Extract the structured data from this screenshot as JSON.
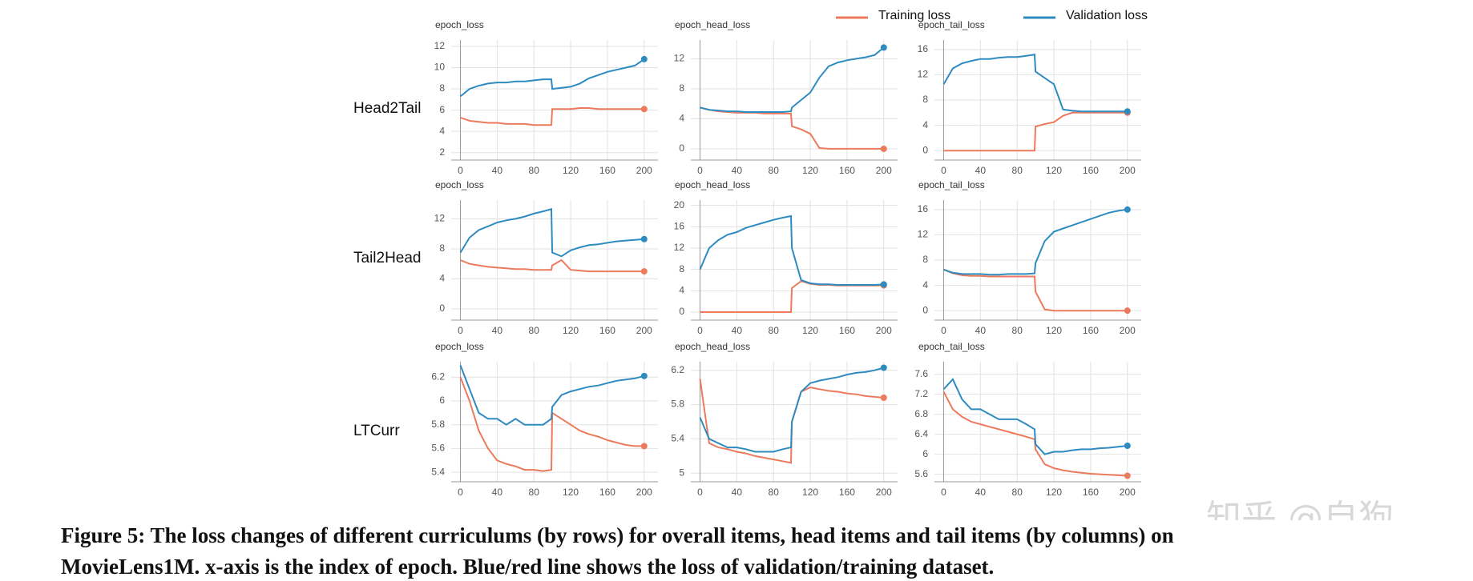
{
  "legend_position": "top-right",
  "row_labels": [
    "Head2Tail",
    "Tail2Head",
    "LTCurr"
  ],
  "caption": [
    "Figure 5: The loss changes of different curriculums (by rows) for overall items, head items and tail items (by columns) on",
    "MovieLens1M. x-axis is the index of epoch. Blue/red line shows the loss of validation/training dataset."
  ],
  "watermark": "知乎 @自狗",
  "chart_data": [
    {
      "type": "line",
      "title": "epoch_loss",
      "x": [
        0,
        10,
        20,
        30,
        40,
        50,
        60,
        70,
        80,
        90,
        99,
        100,
        110,
        120,
        130,
        140,
        150,
        160,
        170,
        180,
        190,
        200
      ],
      "xlim": [
        -10,
        215
      ],
      "xticks": [
        0,
        40,
        80,
        120,
        160,
        200
      ],
      "ylim": [
        1.3,
        12.6
      ],
      "yticks": [
        2,
        4,
        6,
        8,
        10,
        12
      ],
      "grid": true,
      "series": [
        {
          "name": "Training loss",
          "color": "#ec7a5c",
          "values": [
            5.3,
            5.0,
            4.9,
            4.8,
            4.8,
            4.7,
            4.7,
            4.7,
            4.6,
            4.6,
            4.6,
            6.1,
            6.1,
            6.1,
            6.2,
            6.2,
            6.1,
            6.1,
            6.1,
            6.1,
            6.1,
            6.1
          ]
        },
        {
          "name": "Validation loss",
          "color": "#2e8bc0",
          "values": [
            7.3,
            8.0,
            8.3,
            8.5,
            8.6,
            8.6,
            8.7,
            8.7,
            8.8,
            8.9,
            8.9,
            8.0,
            8.1,
            8.2,
            8.5,
            9.0,
            9.3,
            9.6,
            9.8,
            10.0,
            10.2,
            10.8
          ]
        }
      ]
    },
    {
      "type": "line",
      "title": "epoch_head_loss",
      "x": [
        0,
        10,
        20,
        30,
        40,
        50,
        60,
        70,
        80,
        90,
        99,
        100,
        110,
        120,
        130,
        140,
        150,
        160,
        170,
        180,
        190,
        200
      ],
      "xlim": [
        -10,
        215
      ],
      "xticks": [
        0,
        40,
        80,
        120,
        160,
        200
      ],
      "ylim": [
        -1.5,
        14.5
      ],
      "yticks": [
        0,
        4,
        8,
        12
      ],
      "grid": true,
      "series": [
        {
          "color": "#ec7a5c",
          "values": [
            5.5,
            5.2,
            5.0,
            4.9,
            4.8,
            4.8,
            4.8,
            4.7,
            4.7,
            4.7,
            4.7,
            3.0,
            2.6,
            2.0,
            0.1,
            0,
            0,
            0,
            0,
            0,
            0,
            0
          ]
        },
        {
          "color": "#2e8bc0",
          "values": [
            5.5,
            5.2,
            5.1,
            5.0,
            5.0,
            4.9,
            4.9,
            4.9,
            4.9,
            4.9,
            5.0,
            5.5,
            6.5,
            7.5,
            9.5,
            11,
            11.5,
            11.8,
            12,
            12.2,
            12.5,
            13.5
          ]
        }
      ]
    },
    {
      "type": "line",
      "title": "epoch_tail_loss",
      "x": [
        0,
        10,
        20,
        30,
        40,
        50,
        60,
        70,
        80,
        90,
        99,
        100,
        110,
        120,
        130,
        140,
        150,
        160,
        170,
        180,
        190,
        200
      ],
      "xlim": [
        -10,
        215
      ],
      "xticks": [
        0,
        40,
        80,
        120,
        160,
        200
      ],
      "ylim": [
        -1.5,
        17.5
      ],
      "yticks": [
        0,
        4,
        8,
        12,
        16
      ],
      "grid": true,
      "series": [
        {
          "color": "#ec7a5c",
          "values": [
            0,
            0,
            0,
            0,
            0,
            0,
            0,
            0,
            0,
            0,
            0,
            3.8,
            4.2,
            4.5,
            5.5,
            6.0,
            6.0,
            6.0,
            6.0,
            6.0,
            6.0,
            6.0
          ]
        },
        {
          "color": "#2e8bc0",
          "values": [
            10.5,
            13,
            13.8,
            14.2,
            14.5,
            14.5,
            14.7,
            14.8,
            14.8,
            15,
            15.2,
            12.5,
            11.5,
            10.5,
            6.5,
            6.3,
            6.2,
            6.2,
            6.2,
            6.2,
            6.2,
            6.2
          ]
        }
      ]
    },
    {
      "type": "line",
      "title": "epoch_loss",
      "x": [
        0,
        10,
        20,
        30,
        40,
        50,
        60,
        70,
        80,
        90,
        99,
        100,
        110,
        120,
        130,
        140,
        150,
        160,
        170,
        180,
        190,
        200
      ],
      "xlim": [
        -10,
        215
      ],
      "xticks": [
        0,
        40,
        80,
        120,
        160,
        200
      ],
      "ylim": [
        -1.5,
        14.5
      ],
      "yticks": [
        0,
        4,
        8,
        12
      ],
      "grid": true,
      "series": [
        {
          "color": "#ec7a5c",
          "values": [
            6.5,
            6.0,
            5.8,
            5.6,
            5.5,
            5.4,
            5.3,
            5.3,
            5.2,
            5.2,
            5.2,
            5.8,
            6.5,
            5.2,
            5.1,
            5.0,
            5.0,
            5.0,
            5.0,
            5.0,
            5.0,
            5.0
          ]
        },
        {
          "color": "#2e8bc0",
          "values": [
            7.5,
            9.5,
            10.5,
            11,
            11.5,
            11.8,
            12,
            12.3,
            12.7,
            13,
            13.3,
            7.5,
            7,
            7.8,
            8.2,
            8.5,
            8.6,
            8.8,
            9,
            9.1,
            9.2,
            9.3
          ]
        }
      ]
    },
    {
      "type": "line",
      "title": "epoch_head_loss",
      "x": [
        0,
        10,
        20,
        30,
        40,
        50,
        60,
        70,
        80,
        90,
        99,
        100,
        110,
        120,
        130,
        140,
        150,
        160,
        170,
        180,
        190,
        200
      ],
      "xlim": [
        -10,
        215
      ],
      "xticks": [
        0,
        40,
        80,
        120,
        160,
        200
      ],
      "ylim": [
        -1.5,
        21
      ],
      "yticks": [
        0,
        4,
        8,
        12,
        16,
        20
      ],
      "grid": true,
      "series": [
        {
          "color": "#ec7a5c",
          "values": [
            0,
            0,
            0,
            0,
            0,
            0,
            0,
            0,
            0,
            0,
            0,
            4.5,
            5.8,
            5.3,
            5.1,
            5.1,
            5.0,
            5.0,
            5.0,
            5.0,
            5.0,
            5.0
          ]
        },
        {
          "color": "#2e8bc0",
          "values": [
            8,
            12,
            13.5,
            14.5,
            15,
            15.8,
            16.3,
            16.8,
            17.3,
            17.7,
            18,
            12,
            6,
            5.4,
            5.2,
            5.2,
            5.1,
            5.1,
            5.1,
            5.1,
            5.1,
            5.2
          ]
        }
      ]
    },
    {
      "type": "line",
      "title": "epoch_tail_loss",
      "x": [
        0,
        10,
        20,
        30,
        40,
        50,
        60,
        70,
        80,
        90,
        99,
        100,
        110,
        120,
        130,
        140,
        150,
        160,
        170,
        180,
        190,
        200
      ],
      "xlim": [
        -10,
        215
      ],
      "xticks": [
        0,
        40,
        80,
        120,
        160,
        200
      ],
      "ylim": [
        -1.5,
        17.5
      ],
      "yticks": [
        0,
        4,
        8,
        12,
        16
      ],
      "grid": true,
      "series": [
        {
          "color": "#ec7a5c",
          "values": [
            6.5,
            5.9,
            5.6,
            5.5,
            5.5,
            5.4,
            5.4,
            5.4,
            5.4,
            5.4,
            5.4,
            3,
            0.2,
            0,
            0,
            0,
            0,
            0,
            0,
            0,
            0,
            0
          ]
        },
        {
          "color": "#2e8bc0",
          "values": [
            6.5,
            6,
            5.8,
            5.8,
            5.8,
            5.7,
            5.7,
            5.8,
            5.8,
            5.8,
            5.9,
            7.5,
            11,
            12.5,
            13,
            13.5,
            14,
            14.5,
            15,
            15.5,
            15.8,
            16
          ]
        }
      ]
    },
    {
      "type": "line",
      "title": "epoch_loss",
      "x": [
        0,
        10,
        20,
        30,
        40,
        50,
        60,
        70,
        80,
        90,
        99,
        100,
        110,
        120,
        130,
        140,
        150,
        160,
        170,
        180,
        190,
        200
      ],
      "xlim": [
        -10,
        215
      ],
      "xticks": [
        0,
        40,
        80,
        120,
        160,
        200
      ],
      "ylim": [
        5.32,
        6.33
      ],
      "yticks": [
        5.4,
        5.6,
        5.8,
        6,
        6.2
      ],
      "grid": true,
      "series": [
        {
          "color": "#ec7a5c",
          "values": [
            6.2,
            6.0,
            5.75,
            5.6,
            5.5,
            5.47,
            5.45,
            5.42,
            5.42,
            5.41,
            5.42,
            5.9,
            5.85,
            5.8,
            5.75,
            5.72,
            5.7,
            5.67,
            5.65,
            5.63,
            5.62,
            5.62
          ]
        },
        {
          "color": "#2e8bc0",
          "values": [
            6.3,
            6.1,
            5.9,
            5.85,
            5.85,
            5.8,
            5.85,
            5.8,
            5.8,
            5.8,
            5.85,
            5.95,
            6.05,
            6.08,
            6.1,
            6.12,
            6.13,
            6.15,
            6.17,
            6.18,
            6.19,
            6.21
          ]
        }
      ]
    },
    {
      "type": "line",
      "title": "epoch_head_loss",
      "x": [
        0,
        10,
        20,
        30,
        40,
        50,
        60,
        70,
        80,
        90,
        99,
        100,
        110,
        120,
        130,
        140,
        150,
        160,
        170,
        180,
        190,
        200
      ],
      "xlim": [
        -10,
        215
      ],
      "xticks": [
        0,
        40,
        80,
        120,
        160,
        200
      ],
      "ylim": [
        4.9,
        6.3
      ],
      "yticks": [
        5,
        5.4,
        5.8,
        6.2
      ],
      "grid": true,
      "series": [
        {
          "color": "#ec7a5c",
          "values": [
            6.1,
            5.35,
            5.3,
            5.28,
            5.25,
            5.23,
            5.2,
            5.18,
            5.16,
            5.14,
            5.12,
            5.6,
            5.95,
            6.0,
            5.98,
            5.96,
            5.95,
            5.93,
            5.92,
            5.9,
            5.89,
            5.88
          ]
        },
        {
          "color": "#2e8bc0",
          "values": [
            5.65,
            5.4,
            5.35,
            5.3,
            5.3,
            5.28,
            5.25,
            5.25,
            5.25,
            5.28,
            5.3,
            5.6,
            5.95,
            6.05,
            6.08,
            6.1,
            6.12,
            6.15,
            6.17,
            6.18,
            6.2,
            6.23
          ]
        }
      ]
    },
    {
      "type": "line",
      "title": "epoch_tail_loss",
      "x": [
        0,
        10,
        20,
        30,
        40,
        50,
        60,
        70,
        80,
        90,
        99,
        100,
        110,
        120,
        130,
        140,
        150,
        160,
        170,
        180,
        190,
        200
      ],
      "xlim": [
        -10,
        215
      ],
      "xticks": [
        0,
        40,
        80,
        120,
        160,
        200
      ],
      "ylim": [
        5.45,
        7.85
      ],
      "yticks": [
        5.6,
        6,
        6.4,
        6.8,
        7.2,
        7.6
      ],
      "grid": true,
      "series": [
        {
          "color": "#ec7a5c",
          "values": [
            7.25,
            6.9,
            6.75,
            6.65,
            6.6,
            6.55,
            6.5,
            6.45,
            6.4,
            6.35,
            6.3,
            6.1,
            5.8,
            5.72,
            5.68,
            5.65,
            5.63,
            5.61,
            5.6,
            5.59,
            5.58,
            5.57
          ]
        },
        {
          "color": "#2e8bc0",
          "values": [
            7.3,
            7.5,
            7.1,
            6.9,
            6.9,
            6.8,
            6.7,
            6.7,
            6.7,
            6.6,
            6.5,
            6.2,
            6.0,
            6.05,
            6.05,
            6.08,
            6.1,
            6.1,
            6.12,
            6.13,
            6.15,
            6.17
          ]
        }
      ]
    }
  ]
}
